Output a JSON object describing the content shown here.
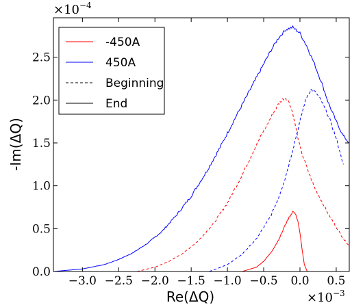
{
  "chart_data": {
    "type": "line",
    "xlabel": "Re(ΔQ)",
    "ylabel": "-Im(ΔQ)",
    "x_scale_label": "×10",
    "x_scale_exp": "−3",
    "y_scale_label": "×10",
    "y_scale_exp": "−4",
    "xlim": [
      -3.4,
      0.68
    ],
    "ylim": [
      0.0,
      2.96
    ],
    "x_ticks": [
      -3.0,
      -2.5,
      -2.0,
      -1.5,
      -1.0,
      -0.5,
      0.0,
      0.5
    ],
    "x_tick_labels": [
      "−3.0",
      "−2.5",
      "−2.0",
      "−1.5",
      "−1.0",
      "−0.5",
      "0.0",
      "0.5"
    ],
    "y_ticks": [
      0.0,
      0.5,
      1.0,
      1.5,
      2.0,
      2.5
    ],
    "y_tick_labels": [
      "0.0",
      "0.5",
      "1.0",
      "1.5",
      "2.0",
      "2.5"
    ],
    "grid": false,
    "legend": {
      "placement": "top-left",
      "entries": [
        {
          "label": "-450A",
          "color": "#ff0000",
          "style": "solid"
        },
        {
          "label": "450A",
          "color": "#0000ff",
          "style": "solid"
        },
        {
          "label": "Beginning",
          "color": "#000000",
          "style": "dashed"
        },
        {
          "label": "End",
          "color": "#000000",
          "style": "solid"
        }
      ]
    },
    "series": [
      {
        "color": "#0000ff",
        "style": "solid",
        "x": [
          -3.4,
          -3.0,
          -2.7,
          -2.5,
          -2.3,
          -2.1,
          -1.9,
          -1.7,
          -1.5,
          -1.3,
          -1.1,
          -0.9,
          -0.7,
          -0.55,
          -0.4,
          -0.3,
          -0.2,
          -0.1,
          0.0,
          0.1,
          0.2,
          0.3,
          0.4,
          0.5,
          0.6,
          0.68
        ],
        "y": [
          0.0,
          0.03,
          0.08,
          0.14,
          0.22,
          0.33,
          0.47,
          0.66,
          0.88,
          1.15,
          1.45,
          1.78,
          2.1,
          2.34,
          2.58,
          2.72,
          2.82,
          2.85,
          2.78,
          2.62,
          2.42,
          2.2,
          1.95,
          1.75,
          1.58,
          1.5
        ]
      },
      {
        "color": "#ff0000",
        "style": "dashed",
        "x": [
          -2.25,
          -2.0,
          -1.8,
          -1.6,
          -1.4,
          -1.2,
          -1.0,
          -0.8,
          -0.6,
          -0.4,
          -0.3,
          -0.25,
          -0.2,
          -0.15,
          -0.1,
          -0.05,
          0.0,
          0.1,
          0.2,
          0.3,
          0.4,
          0.5,
          0.6,
          0.68
        ],
        "y": [
          0.0,
          0.05,
          0.12,
          0.22,
          0.36,
          0.55,
          0.8,
          1.12,
          1.48,
          1.8,
          1.95,
          2.0,
          2.03,
          1.98,
          1.85,
          1.65,
          1.45,
          1.2,
          0.98,
          0.82,
          0.66,
          0.52,
          0.38,
          0.3
        ]
      },
      {
        "color": "#0000ff",
        "style": "dashed",
        "x": [
          -1.25,
          -1.0,
          -0.8,
          -0.6,
          -0.4,
          -0.3,
          -0.2,
          -0.1,
          0.0,
          0.05,
          0.1,
          0.15,
          0.2,
          0.25,
          0.3,
          0.4,
          0.5,
          0.6
        ],
        "y": [
          0.0,
          0.08,
          0.2,
          0.38,
          0.65,
          0.85,
          1.1,
          1.42,
          1.75,
          1.92,
          2.05,
          2.12,
          2.1,
          2.05,
          1.98,
          1.8,
          1.55,
          1.25
        ]
      },
      {
        "color": "#ff0000",
        "style": "solid",
        "x": [
          -0.8,
          -0.6,
          -0.5,
          -0.4,
          -0.3,
          -0.25,
          -0.2,
          -0.15,
          -0.1,
          -0.07,
          -0.03,
          0.0,
          0.03,
          0.06,
          0.1
        ],
        "y": [
          0.0,
          0.05,
          0.12,
          0.22,
          0.36,
          0.45,
          0.55,
          0.63,
          0.7,
          0.68,
          0.6,
          0.45,
          0.25,
          0.08,
          0.0
        ]
      }
    ]
  }
}
